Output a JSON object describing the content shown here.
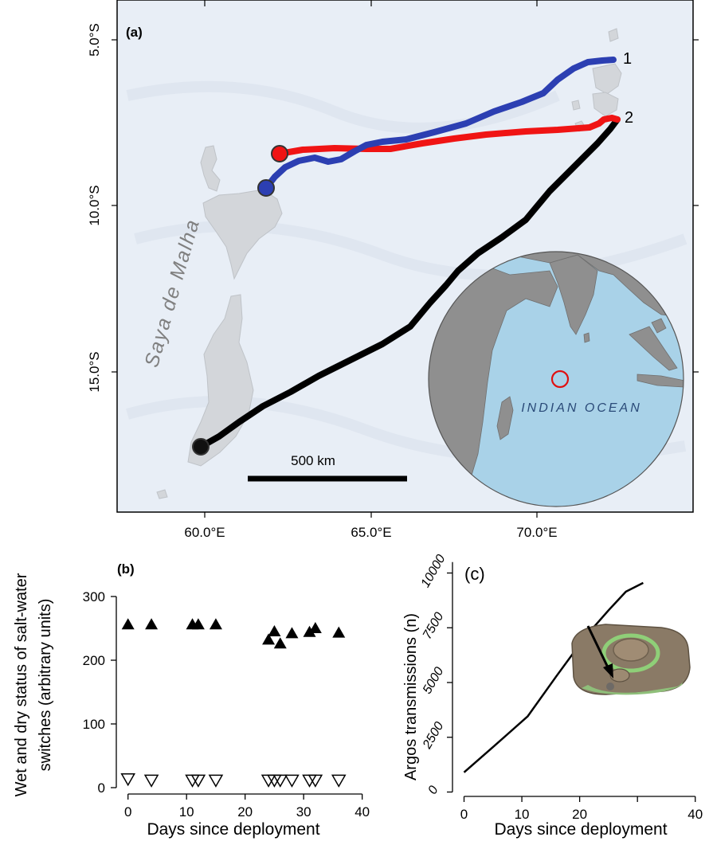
{
  "panel_a": {
    "label": "(a)",
    "lat_ticks": [
      "5.0°S",
      "10.0°S",
      "15.0°S"
    ],
    "lon_ticks": [
      "60.0°E",
      "65.0°E",
      "70.0°E"
    ],
    "region_label": "Saya de Malha",
    "scale_bar_label": "500 km",
    "track_labels": [
      "1",
      "2"
    ],
    "inset": {
      "ocean_label": "INDIAN OCEAN"
    },
    "colors": {
      "ocean": "#e8eef6",
      "land": "#d3d6da",
      "track_blue": "#2c3fb2",
      "track_red": "#f01414",
      "track_black": "#000000",
      "inset_ocean": "#a9d2e8",
      "inset_land": "#8f8f8f"
    }
  },
  "chart_data": [
    {
      "type": "scatter",
      "label": "(b)",
      "xlabel": "Days since deployment",
      "ylabel_line1": "Wet and dry status of salt-water",
      "ylabel_line2": "switches (arbitrary units)",
      "xlim": [
        -2,
        41
      ],
      "ylim": [
        -10,
        310
      ],
      "x_ticks": [
        "0",
        "10",
        "20",
        "30",
        "40"
      ],
      "y_ticks": [
        "0",
        "100",
        "200",
        "300"
      ],
      "series": [
        {
          "marker": "filled-triangle",
          "points": [
            [
              0,
              256
            ],
            [
              4,
              256
            ],
            [
              11,
              256
            ],
            [
              12,
              256
            ],
            [
              15,
              256
            ],
            [
              24,
              232
            ],
            [
              25,
              245
            ],
            [
              26,
              226
            ],
            [
              28,
              242
            ],
            [
              31,
              244
            ],
            [
              32,
              250
            ],
            [
              36,
              243
            ]
          ]
        },
        {
          "marker": "open-triangle-down",
          "points": [
            [
              0,
              14
            ],
            [
              4,
              12
            ],
            [
              11,
              12
            ],
            [
              12,
              12
            ],
            [
              15,
              12
            ],
            [
              24,
              12
            ],
            [
              25,
              12
            ],
            [
              26,
              12
            ],
            [
              28,
              12
            ],
            [
              31,
              12
            ],
            [
              32,
              12
            ],
            [
              36,
              12
            ]
          ]
        }
      ]
    },
    {
      "type": "line",
      "label": "(c)",
      "xlabel": "Days since deployment",
      "ylabel": "Argos transmissions (n)",
      "xlim": [
        -2,
        41
      ],
      "ylim": [
        -200,
        10600
      ],
      "x_ticks": [
        "0",
        "10",
        "20",
        "40"
      ],
      "y_ticks": [
        "0",
        "2500",
        "5000",
        "7500",
        "10000"
      ],
      "x": [
        0,
        5,
        11,
        16,
        21,
        25,
        28,
        31
      ],
      "values": [
        900,
        2050,
        3450,
        5300,
        7100,
        8300,
        9150,
        9550
      ]
    }
  ]
}
